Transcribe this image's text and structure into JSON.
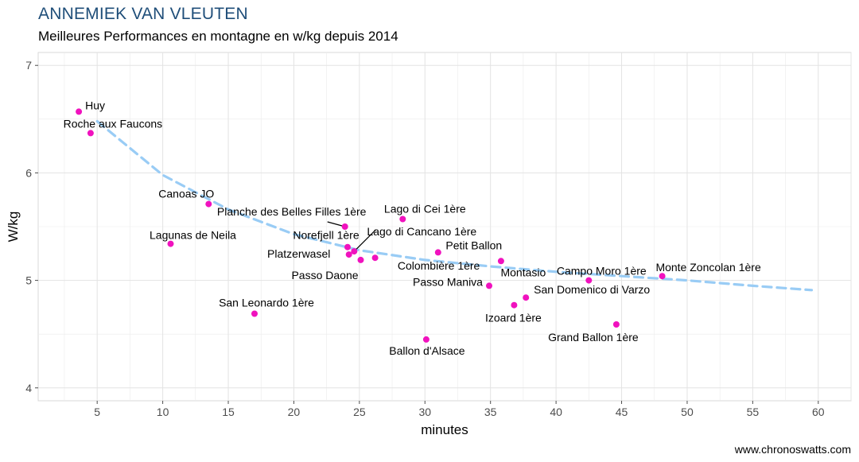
{
  "header": {
    "title": "ANNEMIEK VAN VLEUTEN",
    "subtitle": "Meilleures Performances en montagne en w/kg depuis 2014"
  },
  "footer": {
    "credit": "www.chronoswatts.com"
  },
  "colors": {
    "point": "#f012be",
    "trend": "#99ccf5",
    "title": "#1f4e79",
    "grid": "#ebebeb",
    "panel_border": "#d9d9d9"
  },
  "chart_data": {
    "type": "scatter",
    "xlabel": "minutes",
    "ylabel": "W/kg",
    "xlim": [
      0.5,
      62.5
    ],
    "ylim": [
      3.88,
      7.12
    ],
    "x_ticks": [
      5,
      10,
      15,
      20,
      25,
      30,
      35,
      40,
      45,
      50,
      55,
      60
    ],
    "y_ticks": [
      4,
      5,
      6,
      7
    ],
    "grid": true,
    "points": [
      {
        "label": "Huy",
        "x": 3.6,
        "y": 6.57
      },
      {
        "label": "Roche aux Faucons",
        "x": 4.5,
        "y": 6.37
      },
      {
        "label": "Canoas JO",
        "x": 13.5,
        "y": 5.71
      },
      {
        "label": "Lagunas de Neila",
        "x": 10.6,
        "y": 5.34
      },
      {
        "label": "Planche des Belles Filles 1ère",
        "x": 23.9,
        "y": 5.5
      },
      {
        "label": "Norefjell 1ère",
        "x": 24.1,
        "y": 5.31
      },
      {
        "label": "Lago di Cancano 1ère",
        "x": 24.6,
        "y": 5.27
      },
      {
        "label": "Platzerwasel",
        "x": 24.2,
        "y": 5.24
      },
      {
        "label": "Passo Daone",
        "x": 25.1,
        "y": 5.19
      },
      {
        "label": "Colombière 1ère",
        "x": 26.2,
        "y": 5.21
      },
      {
        "label": "Lago di Cei 1ère",
        "x": 28.3,
        "y": 5.57
      },
      {
        "label": "Petit Ballon",
        "x": 31.0,
        "y": 5.26
      },
      {
        "label": "Montasio",
        "x": 35.8,
        "y": 5.18
      },
      {
        "label": "Passo Maniva",
        "x": 34.9,
        "y": 4.95
      },
      {
        "label": "San Domenico di Varzo",
        "x": 37.7,
        "y": 4.84
      },
      {
        "label": "Izoard 1ère",
        "x": 36.8,
        "y": 4.77
      },
      {
        "label": "Campo Moro 1ère",
        "x": 42.5,
        "y": 5.0
      },
      {
        "label": "Monte Zoncolan 1ère",
        "x": 48.1,
        "y": 5.04
      },
      {
        "label": "Grand Ballon 1ère",
        "x": 44.6,
        "y": 4.59
      },
      {
        "label": "San Leonardo 1ère",
        "x": 17.0,
        "y": 4.69
      },
      {
        "label": "Ballon d'Alsace",
        "x": 30.1,
        "y": 4.45
      }
    ],
    "trend": {
      "style": "dashed",
      "x": [
        5,
        10,
        15,
        20,
        25,
        30,
        35,
        40,
        45,
        50,
        55,
        59.5
      ],
      "y": [
        6.48,
        5.98,
        5.66,
        5.43,
        5.28,
        5.19,
        5.13,
        5.08,
        5.04,
        5.0,
        4.95,
        4.91
      ]
    }
  }
}
